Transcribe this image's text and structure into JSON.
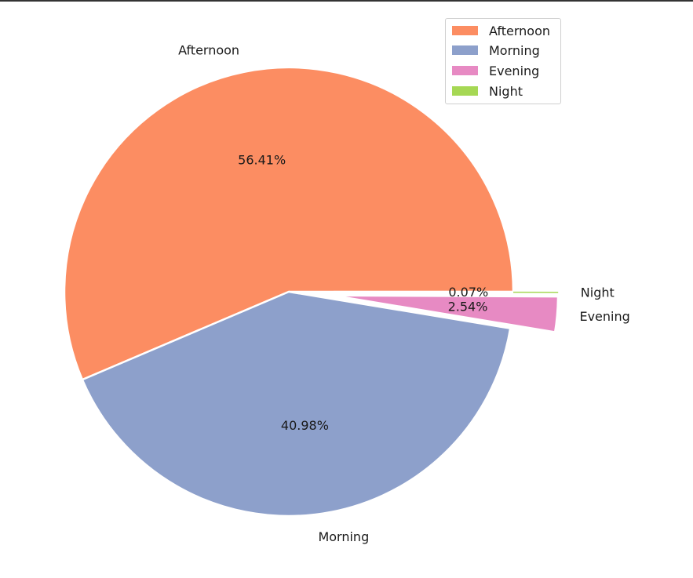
{
  "chart_data": {
    "type": "pie",
    "title": "",
    "slices": [
      {
        "label": "Afternoon",
        "percent": 56.41,
        "pct_label": "56.41%",
        "color": "#fc8d62",
        "exploded": false
      },
      {
        "label": "Morning",
        "percent": 40.98,
        "pct_label": "40.98%",
        "color": "#8da0cb",
        "exploded": false
      },
      {
        "label": "Evening",
        "percent": 2.54,
        "pct_label": "2.54%",
        "color": "#e78ac3",
        "exploded": true
      },
      {
        "label": "Night",
        "percent": 0.07,
        "pct_label": "0.07%",
        "color": "#a6d854",
        "exploded": true
      }
    ],
    "legend": {
      "placement": "top-right",
      "entries": [
        "Afternoon",
        "Morning",
        "Evening",
        "Night"
      ]
    }
  }
}
